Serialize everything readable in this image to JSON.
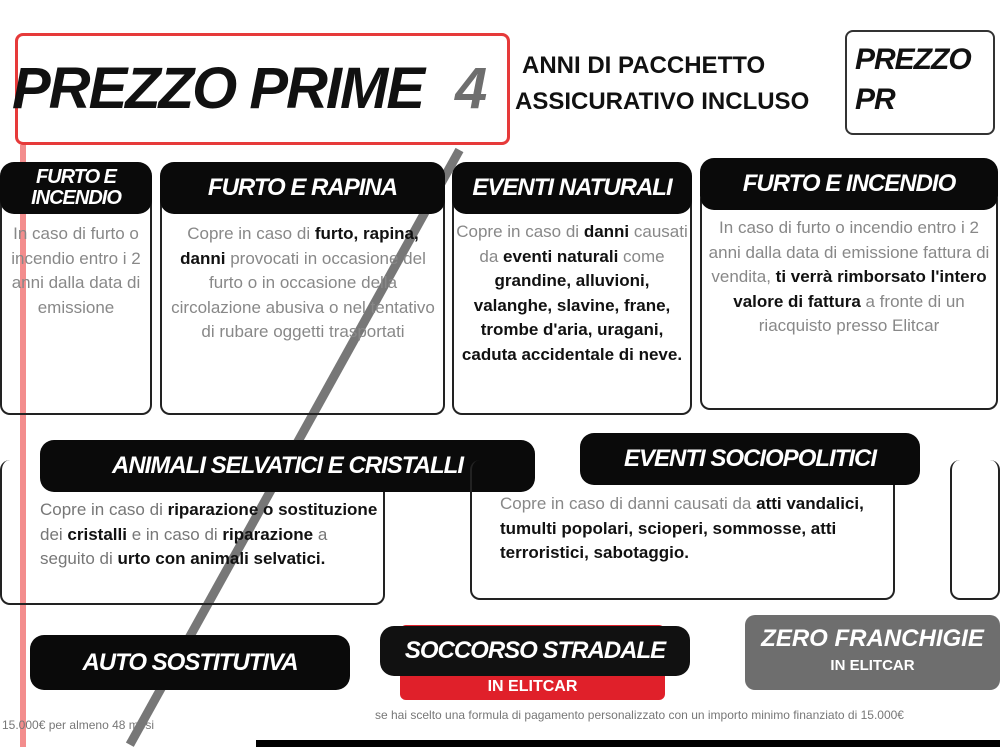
{
  "header": {
    "title": "PREZZO PRIME",
    "badge_number": "4",
    "subtitle_line1": "ANNI DI PACCHETTO",
    "subtitle_line2": "ASSICURATIVO INCLUSO",
    "right_fragment": "PREZZO PR"
  },
  "cards": [
    {
      "title": "FURTO E INCENDIO",
      "body": "In caso di furto o incendio entro i 2 anni dalla data di emissione"
    },
    {
      "title": "FURTO E RAPINA",
      "body_parts": [
        "Copre in caso di ",
        "furto,",
        " ",
        "rapina, danni",
        " provocati in occasione del furto o in occasione della circolazione abusiva o nel tentativo di rubare oggetti trasportati"
      ]
    },
    {
      "title": "EVENTI NATURALI",
      "body_parts": [
        "Copre in caso di ",
        "danni",
        " causati da ",
        "eventi naturali",
        " come ",
        "grandine, alluvioni, valanghe, slavine, frane, trombe d'aria, uragani, caduta accidentale di neve."
      ]
    },
    {
      "title": "FURTO E INCENDIO",
      "body_parts": [
        "In caso di furto o incendio entro i 2 anni dalla data di emissione fattura di vendita, ",
        "ti verrà rimborsato l'intero valore di fattura",
        " a fronte di un riacquisto presso Elitcar"
      ]
    },
    {
      "title": "ANIMALI SELVATICI E CRISTALLI",
      "body_parts": [
        "Copre in caso di ",
        "riparazione o sostituzione",
        " dei ",
        "cristalli",
        " e in caso di ",
        "riparazione",
        " a seguito di ",
        "urto con animali selvatici."
      ]
    },
    {
      "title": "EVENTI SOCIOPOLITICI",
      "body_parts": [
        "Copre in caso di danni causati da ",
        "atti vandalici, tumulti popolari, scioperi, sommosse, atti terroristici, sabotaggio."
      ]
    }
  ],
  "badges": {
    "auto": "AUTO SOSTITUTIVA",
    "soccorso": "SOCCORSO STRADALE",
    "soccorso_sub": "IN ELITCAR",
    "zero": "ZERO FRANCHIGIE",
    "zero_sub": "IN ELITCAR"
  },
  "footnotes": {
    "left": "15.000€ per almeno 48 mesi",
    "right": "se hai scelto una formula di pagamento personalizzato con un importo minimo finanziato di 15.000€"
  },
  "colors": {
    "accent": "#e0202a",
    "grey": "#6e6e6e"
  }
}
